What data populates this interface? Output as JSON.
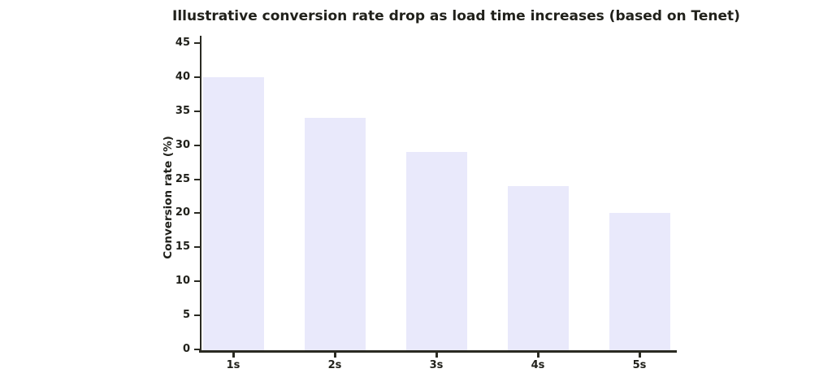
{
  "chart_data": {
    "type": "bar",
    "title": "Illustrative conversion rate drop as load time increases (based on Tenet)",
    "categories": [
      "1s",
      "2s",
      "3s",
      "4s",
      "5s"
    ],
    "values": [
      40,
      34,
      29,
      24,
      20
    ],
    "xlabel": "",
    "ylabel": "Conversion rate (%)",
    "ylim": [
      0,
      45
    ],
    "yticks": [
      0,
      5,
      10,
      15,
      20,
      25,
      30,
      35,
      40,
      45
    ],
    "grid": false,
    "legend": null,
    "colors": {
      "bar_fill": "#e9e9fb",
      "axis": "#2a2a22",
      "text": "#21211b",
      "background": "#ffffff"
    }
  }
}
